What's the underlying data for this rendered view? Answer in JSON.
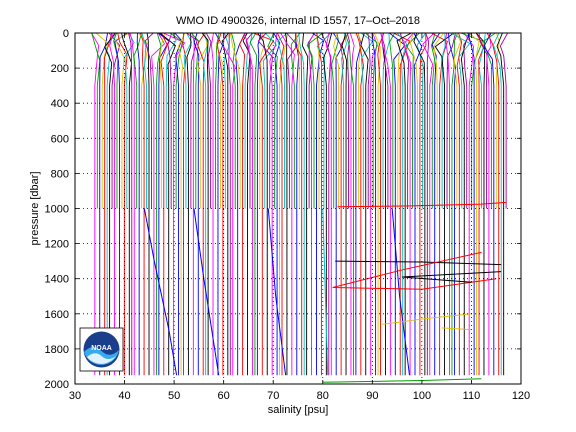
{
  "chart_data": {
    "type": "line",
    "title": "WMO ID 4900326, internal ID 1557, 17–Oct–2018",
    "xlabel": "salinity [psu]",
    "ylabel": "pressure [dbar]",
    "xlim": [
      30,
      120
    ],
    "ylim": [
      0,
      2000
    ],
    "y_reversed": true,
    "grid": "dotted",
    "x_ticks": [
      30,
      40,
      50,
      60,
      70,
      80,
      90,
      100,
      110,
      120
    ],
    "y_ticks": [
      0,
      200,
      400,
      600,
      800,
      1000,
      1200,
      1400,
      1600,
      1800,
      2000
    ],
    "series_colors": [
      "#ff00ff",
      "#00a000",
      "#0000ff",
      "#e0c000",
      "#ff0000",
      "#00c0c0",
      "#000000",
      "#a000a0"
    ],
    "profile_count": 168,
    "salinity_range": [
      34.0,
      117.0
    ],
    "deep_profile_segments": [
      {
        "color": "#0000ff",
        "x": [
          44.0,
          46.0,
          49.0,
          50.5
        ],
        "y": [
          1000,
          1300,
          1700,
          1950
        ]
      },
      {
        "color": "#0000ff",
        "x": [
          54.0,
          56.0,
          59.0
        ],
        "y": [
          1000,
          1400,
          1950
        ]
      },
      {
        "color": "#0000ff",
        "x": [
          69.0,
          70.5,
          72.5
        ],
        "y": [
          1000,
          1500,
          1950
        ]
      },
      {
        "color": "#00c0c0",
        "x": [
          80.0,
          81.0
        ],
        "y": [
          1000,
          1950
        ]
      },
      {
        "color": "#0000ff",
        "x": [
          94.0,
          95.5,
          97.5
        ],
        "y": [
          1000,
          1500,
          1950
        ]
      },
      {
        "color": "#ff0000",
        "x": [
          83.0,
          98.0,
          112.0,
          117.0
        ],
        "y": [
          990,
          985,
          975,
          965
        ]
      },
      {
        "color": "#000000",
        "x": [
          82.5,
          100.0,
          116.0
        ],
        "y": [
          1300,
          1305,
          1320
        ]
      },
      {
        "color": "#ff0000",
        "x": [
          112.0,
          96.0,
          82.0,
          100.0,
          115.0
        ],
        "y": [
          1250,
          1350,
          1450,
          1460,
          1400
        ]
      },
      {
        "color": "#000000",
        "x": [
          110.0,
          96.0,
          116.0
        ],
        "y": [
          1420,
          1390,
          1360
        ]
      },
      {
        "color": "#e0c000",
        "x": [
          92.0,
          100.0,
          110.0
        ],
        "y": [
          1660,
          1630,
          1600
        ]
      },
      {
        "color": "#e0c000",
        "x": [
          104.0,
          110.0
        ],
        "y": [
          1680,
          1690
        ]
      },
      {
        "color": "#00a000",
        "x": [
          80.0,
          100.0,
          112.0
        ],
        "y": [
          1990,
          1980,
          1970
        ]
      }
    ]
  },
  "logo": {
    "text": "NOAA"
  }
}
